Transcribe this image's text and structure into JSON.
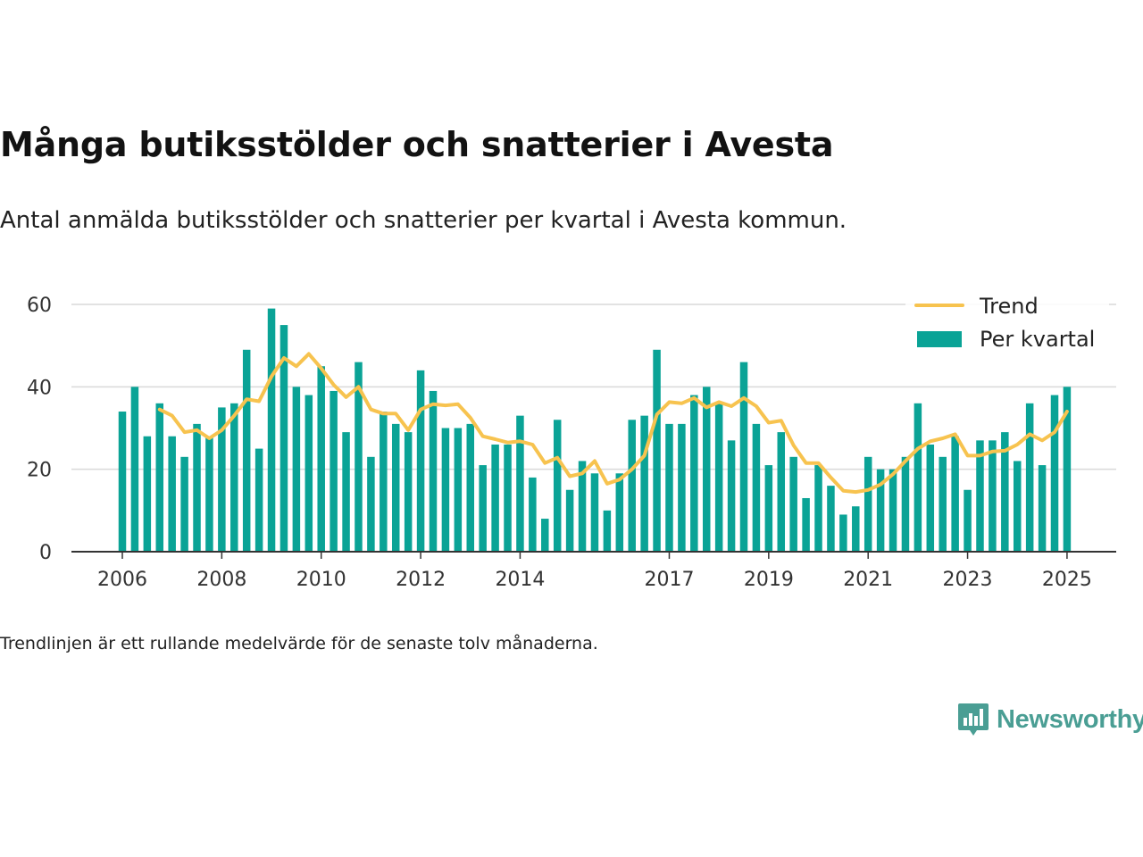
{
  "title": "Många butiksstölder och snatterier i Avesta",
  "subtitle": "Antal anmälda butiksstölder och snatterier per kvartal i Avesta kommun.",
  "note": "Trendlinjen är ett rullande medelvärde för de senaste tolv månaderna.",
  "brand": {
    "name": "Newsworthy",
    "icon": "newsworthy-logo-icon"
  },
  "colors": {
    "bar": "#0aa396",
    "trend": "#f7c34f",
    "grid": "#d9d9d9",
    "axis": "#333333"
  },
  "chart_data": {
    "type": "bar",
    "title": "Många butiksstölder och snatterier i Avesta",
    "subtitle": "Antal anmälda butiksstölder och snatterier per kvartal i Avesta kommun.",
    "xlabel": "",
    "ylabel": "",
    "ylim": [
      0,
      60
    ],
    "yticks": [
      0,
      20,
      40,
      60
    ],
    "xtick_labels": [
      "2006",
      "2008",
      "2010",
      "2012",
      "2014",
      "2017",
      "2019",
      "2021",
      "2023",
      "2025"
    ],
    "grid": true,
    "legend_position": "top-right",
    "series": [
      {
        "name": "Per kvartal",
        "type": "bar",
        "x": [
          "2006-Q1",
          "2006-Q2",
          "2006-Q3",
          "2006-Q4",
          "2007-Q1",
          "2007-Q2",
          "2007-Q3",
          "2007-Q4",
          "2008-Q1",
          "2008-Q2",
          "2008-Q3",
          "2008-Q4",
          "2009-Q1",
          "2009-Q2",
          "2009-Q3",
          "2009-Q4",
          "2010-Q1",
          "2010-Q2",
          "2010-Q3",
          "2010-Q4",
          "2011-Q1",
          "2011-Q2",
          "2011-Q3",
          "2011-Q4",
          "2012-Q1",
          "2012-Q2",
          "2012-Q3",
          "2012-Q4",
          "2013-Q1",
          "2013-Q2",
          "2013-Q3",
          "2013-Q4",
          "2014-Q1",
          "2014-Q2",
          "2014-Q3",
          "2014-Q4",
          "2015-Q1",
          "2015-Q2",
          "2015-Q3",
          "2015-Q4",
          "2016-Q1",
          "2016-Q2",
          "2016-Q3",
          "2016-Q4",
          "2017-Q1",
          "2017-Q2",
          "2017-Q3",
          "2017-Q4",
          "2018-Q1",
          "2018-Q2",
          "2018-Q3",
          "2018-Q4",
          "2019-Q1",
          "2019-Q2",
          "2019-Q3",
          "2019-Q4",
          "2020-Q1",
          "2020-Q2",
          "2020-Q3",
          "2020-Q4",
          "2021-Q1",
          "2021-Q2",
          "2021-Q3",
          "2021-Q4",
          "2022-Q1",
          "2022-Q2",
          "2022-Q3",
          "2022-Q4",
          "2023-Q1",
          "2023-Q2",
          "2023-Q3",
          "2023-Q4",
          "2024-Q1",
          "2024-Q2",
          "2024-Q3",
          "2024-Q4",
          "2025-Q1"
        ],
        "values": [
          34,
          40,
          28,
          36,
          28,
          23,
          31,
          28,
          35,
          36,
          49,
          25,
          59,
          55,
          40,
          38,
          45,
          39,
          29,
          46,
          23,
          34,
          31,
          29,
          44,
          39,
          30,
          30,
          31,
          21,
          26,
          26,
          33,
          18,
          8,
          32,
          15,
          22,
          19,
          10,
          19,
          32,
          33,
          49,
          31,
          31,
          38,
          40,
          36,
          27,
          46,
          31,
          21,
          29,
          23,
          13,
          21,
          16,
          9,
          11,
          23,
          20,
          20,
          23,
          36,
          26,
          23,
          28,
          15,
          27,
          27,
          29,
          22,
          36,
          21,
          38,
          40
        ]
      },
      {
        "name": "Trend",
        "type": "line",
        "x": [
          "2006-Q4",
          "2007-Q1",
          "2007-Q2",
          "2007-Q3",
          "2007-Q4",
          "2008-Q1",
          "2008-Q2",
          "2008-Q3",
          "2008-Q4",
          "2009-Q1",
          "2009-Q2",
          "2009-Q3",
          "2009-Q4",
          "2010-Q1",
          "2010-Q2",
          "2010-Q3",
          "2010-Q4",
          "2011-Q1",
          "2011-Q2",
          "2011-Q3",
          "2011-Q4",
          "2012-Q1",
          "2012-Q2",
          "2012-Q3",
          "2012-Q4",
          "2013-Q1",
          "2013-Q2",
          "2013-Q3",
          "2013-Q4",
          "2014-Q1",
          "2014-Q2",
          "2014-Q3",
          "2014-Q4",
          "2015-Q1",
          "2015-Q2",
          "2015-Q3",
          "2015-Q4",
          "2016-Q1",
          "2016-Q2",
          "2016-Q3",
          "2016-Q4",
          "2017-Q1",
          "2017-Q2",
          "2017-Q3",
          "2017-Q4",
          "2018-Q1",
          "2018-Q2",
          "2018-Q3",
          "2018-Q4",
          "2019-Q1",
          "2019-Q2",
          "2019-Q3",
          "2019-Q4",
          "2020-Q1",
          "2020-Q2",
          "2020-Q3",
          "2020-Q4",
          "2021-Q1",
          "2021-Q2",
          "2021-Q3",
          "2021-Q4",
          "2022-Q1",
          "2022-Q2",
          "2022-Q3",
          "2022-Q4",
          "2023-Q1",
          "2023-Q2",
          "2023-Q3",
          "2023-Q4",
          "2024-Q1",
          "2024-Q2",
          "2024-Q3",
          "2024-Q4",
          "2025-Q1"
        ],
        "values": [
          34.5,
          33,
          29,
          29.5,
          27.5,
          29.5,
          33,
          37,
          36.5,
          42.5,
          47,
          45,
          48,
          44.5,
          40.5,
          37.5,
          40,
          34.5,
          33.5,
          33.5,
          29.5,
          34.5,
          35.8,
          35.5,
          35.8,
          32.5,
          28,
          27.3,
          26.5,
          26.8,
          26,
          21.5,
          22.8,
          18.3,
          19,
          22,
          16.5,
          17.5,
          20,
          23.3,
          33.3,
          36.3,
          36,
          37.3,
          35,
          36.3,
          35.3,
          37.3,
          35.3,
          31.3,
          31.8,
          25.8,
          21.5,
          21.5,
          18,
          14.8,
          14.5,
          15,
          16.3,
          18.8,
          22,
          25,
          26.8,
          27.5,
          28.5,
          23.3,
          23.3,
          24.3,
          24.5,
          26,
          28.5,
          27,
          29,
          34
        ]
      }
    ]
  }
}
